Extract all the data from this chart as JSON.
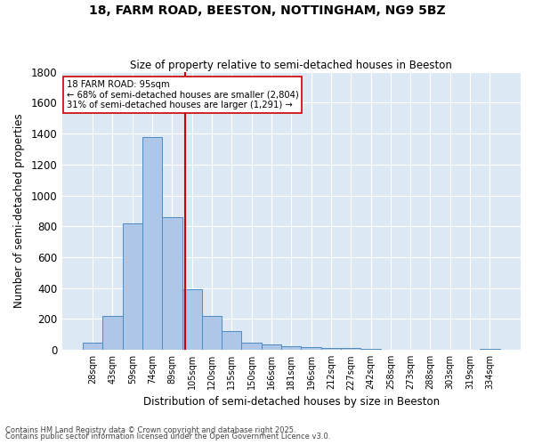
{
  "title1": "18, FARM ROAD, BEESTON, NOTTINGHAM, NG9 5BZ",
  "title2": "Size of property relative to semi-detached houses in Beeston",
  "xlabel": "Distribution of semi-detached houses by size in Beeston",
  "ylabel": "Number of semi-detached properties",
  "bin_labels": [
    "28sqm",
    "43sqm",
    "59sqm",
    "74sqm",
    "89sqm",
    "105sqm",
    "120sqm",
    "135sqm",
    "150sqm",
    "166sqm",
    "181sqm",
    "196sqm",
    "212sqm",
    "227sqm",
    "242sqm",
    "258sqm",
    "273sqm",
    "288sqm",
    "303sqm",
    "319sqm",
    "334sqm"
  ],
  "bar_values": [
    50,
    220,
    820,
    1380,
    860,
    395,
    220,
    120,
    50,
    35,
    25,
    20,
    15,
    10,
    5,
    3,
    2,
    1,
    0,
    0,
    5
  ],
  "bar_color": "#aec6e8",
  "bar_edge_color": "#4d8bc4",
  "vline_color": "#cc0000",
  "vline_pos": 4.65,
  "annotation_title": "18 FARM ROAD: 95sqm",
  "annotation_line1": "← 68% of semi-detached houses are smaller (2,804)",
  "annotation_line2": "31% of semi-detached houses are larger (1,291) →",
  "annotation_box_color": "#ffffff",
  "annotation_box_edge": "#cc0000",
  "footer1": "Contains HM Land Registry data © Crown copyright and database right 2025.",
  "footer2": "Contains public sector information licensed under the Open Government Licence v3.0.",
  "background_color": "#dde8f5",
  "ylim": [
    0,
    1800
  ],
  "yticks": [
    0,
    200,
    400,
    600,
    800,
    1000,
    1200,
    1400,
    1600,
    1800
  ]
}
